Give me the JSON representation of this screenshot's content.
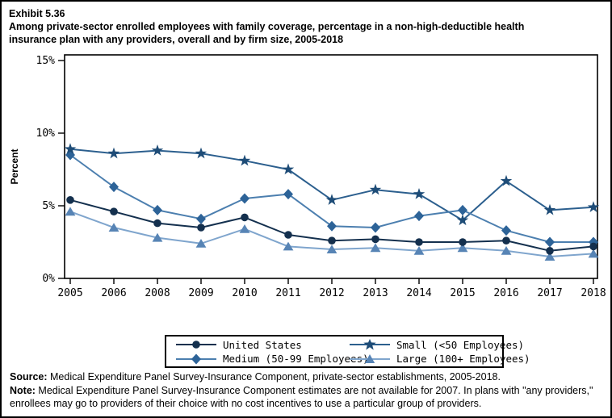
{
  "exhibit_label": "Exhibit 5.36",
  "title_line1": "Among private-sector enrolled employees with family coverage, percentage in a non-high-deductible health",
  "title_line2": "insurance plan with any providers, overall and by firm size, 2005-2018",
  "footer": {
    "source_label": "Source:",
    "source_text": " Medical Expenditure Panel Survey-Insurance Component, private-sector establishments, 2005-2018.",
    "note_label": "Note:",
    "note_text": " Medical Expenditure Panel Survey-Insurance Component estimates are not available for 2007. In plans with \"any providers,\" enrollees may go to providers of their choice with no cost incentives to use a particular group of providers."
  },
  "chart_data": {
    "type": "line",
    "title": "Percentage in a non-high-deductible health insurance plan with any providers, overall and by firm size, 2005-2018",
    "xlabel": "",
    "ylabel": "Percent",
    "ylim": [
      0,
      15
    ],
    "yticks": [
      0,
      5,
      10,
      15
    ],
    "ytick_labels": [
      "0%",
      "5%",
      "10%",
      "15%"
    ],
    "grid": false,
    "legend_position": "bottom",
    "note": "2007 estimates not available",
    "categories": [
      "2005",
      "2006",
      "2008",
      "2009",
      "2010",
      "2011",
      "2012",
      "2013",
      "2014",
      "2015",
      "2016",
      "2017",
      "2018"
    ],
    "series": [
      {
        "name": "United States",
        "marker": "circle",
        "color": "#14304E",
        "line_color": "#14304E",
        "values": [
          5.4,
          4.6,
          3.8,
          3.5,
          4.2,
          3.0,
          2.6,
          2.7,
          2.5,
          2.5,
          2.6,
          1.9,
          2.2
        ]
      },
      {
        "name": "Small (<50 Employees)",
        "marker": "star",
        "color": "#1E4C77",
        "line_color": "#2C5F8E",
        "values": [
          8.9,
          8.6,
          8.8,
          8.6,
          8.1,
          7.5,
          5.4,
          6.1,
          5.8,
          4.0,
          6.7,
          4.7,
          4.9
        ]
      },
      {
        "name": "Medium (50-99 Employees)",
        "marker": "diamond",
        "color": "#2D6398",
        "line_color": "#4C7FAF",
        "values": [
          8.5,
          6.3,
          4.7,
          4.1,
          5.5,
          5.8,
          3.6,
          3.5,
          4.3,
          4.7,
          3.3,
          2.5,
          2.5
        ]
      },
      {
        "name": "Large (100+ Employees)",
        "marker": "triangle",
        "color": "#5784B5",
        "line_color": "#7FA5CD",
        "values": [
          4.6,
          3.5,
          2.8,
          2.4,
          3.4,
          2.2,
          2.0,
          2.1,
          1.9,
          2.1,
          1.9,
          1.5,
          1.7
        ]
      }
    ]
  },
  "legend": {
    "items": [
      {
        "label": "United States",
        "series": 0
      },
      {
        "label": "Small (<50 Employees)",
        "series": 1
      },
      {
        "label": "Medium (50-99 Employees)",
        "series": 2
      },
      {
        "label": "Large (100+ Employees)",
        "series": 3
      }
    ]
  }
}
